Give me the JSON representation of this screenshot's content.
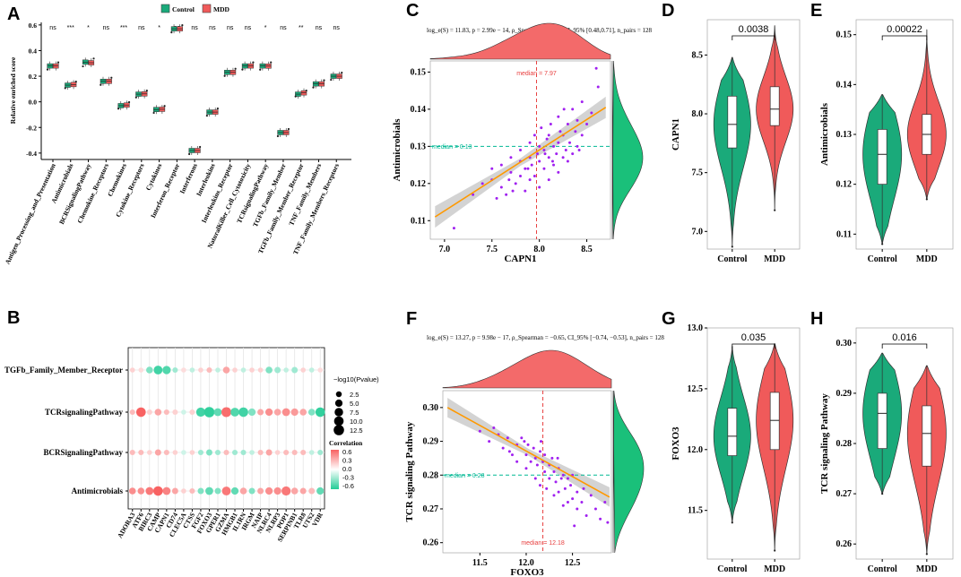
{
  "colors": {
    "control": "#1aaa7a",
    "mdd": "#f05a5a",
    "scatter": "#a020f0",
    "fit": "#ff9900",
    "medianH": "#00b894",
    "medianV": "#e84040"
  },
  "panels": {
    "A": "A",
    "B": "B",
    "C": "C",
    "D": "D",
    "E": "E",
    "F": "F",
    "G": "G",
    "H": "H"
  },
  "chart_data": [
    {
      "panel": "A",
      "type": "box",
      "legend": [
        "Control",
        "MDD"
      ],
      "ylabel": "Relative enriched score",
      "ylim": [
        -0.45,
        0.62
      ],
      "yticks": [
        "0.6",
        "0.4",
        "0.2",
        "0.0",
        "-0.2",
        "-0.4"
      ],
      "categories": [
        "Antigen_Processing_and_Presentation",
        "Antimicrobials",
        "BCRSignalingPathway",
        "Chemokine_Receptors",
        "Chemokines",
        "Cytokine_Receptors",
        "Cytokines",
        "Interferon_Receptor",
        "Interferons",
        "Interleukins",
        "Interleukins_Receptor",
        "NaturalKiller_Cell_Cytotoxicity",
        "TCRsignalingPathway",
        "TGFb_Family_Member",
        "TGFb_Family_Member_Receptor",
        "TNF_Family_Members",
        "TNF_Family_Members_Receptors"
      ],
      "significance": [
        "ns",
        "***",
        "*",
        "ns",
        "***",
        "ns",
        "*",
        "ns",
        "ns",
        "ns",
        "ns",
        "ns",
        "*",
        "ns",
        "**",
        "ns",
        "ns"
      ],
      "control": [
        0.28,
        0.13,
        0.31,
        0.16,
        -0.03,
        0.06,
        -0.06,
        0.57,
        -0.38,
        -0.08,
        0.23,
        0.28,
        0.28,
        -0.24,
        0.06,
        0.14,
        0.2
      ],
      "mdd": [
        0.28,
        0.135,
        0.305,
        0.16,
        -0.025,
        0.062,
        -0.058,
        0.57,
        -0.38,
        -0.08,
        0.23,
        0.28,
        0.279,
        -0.24,
        0.07,
        0.14,
        0.2
      ]
    },
    {
      "panel": "B",
      "type": "dotplot",
      "pathways": [
        "TGFb_Family_Member_Receptor",
        "TCRsignalingPathway",
        "BCRSignalingPathway",
        "Antimicrobials"
      ],
      "genes": [
        "ADORA3",
        "ATF6",
        "BIRC3",
        "CAMP",
        "CAPN1",
        "CD74",
        "CLEC5A",
        "CTSS",
        "FGF2",
        "FOXO3",
        "GPER1",
        "GZMA",
        "HMGB1",
        "IL1RN",
        "IRGM",
        "NAIP",
        "NLRC4",
        "NLRP3",
        "POP1",
        "SERPINB1",
        "TLR8",
        "UTS2",
        "VDR"
      ],
      "size_legend_title": "−log10(Pvalue)",
      "size_legend": [
        "2.5",
        "5.0",
        "7.5",
        "10.0",
        "12.5"
      ],
      "color_legend_title": "Correlation",
      "color_legend": [
        "0.6",
        "0.3",
        "0.0",
        "-0.3",
        "-0.6"
      ],
      "correlation": [
        [
          0.1,
          0.05,
          -0.3,
          -0.5,
          -0.45,
          -0.2,
          0.05,
          -0.1,
          0.1,
          0.2,
          -0.1,
          0.3,
          0.1,
          -0.1,
          0.1,
          0.1,
          -0.3,
          -0.2,
          -0.1,
          -0.2,
          0.1,
          -0.1,
          0.05
        ],
        [
          0.2,
          0.6,
          0.1,
          0.3,
          0.2,
          0.1,
          -0.05,
          0.1,
          -0.5,
          -0.55,
          -0.4,
          0.55,
          -0.45,
          -0.5,
          -0.3,
          0.3,
          0.4,
          0.3,
          0.4,
          0.35,
          0.3,
          -0.3,
          -0.55
        ],
        [
          0.2,
          0.2,
          0.1,
          0.3,
          0.2,
          0.1,
          -0.05,
          0.1,
          -0.2,
          -0.3,
          -0.2,
          0.2,
          -0.2,
          -0.2,
          -0.1,
          0.2,
          0.3,
          0.1,
          0.2,
          0.2,
          0.2,
          -0.1,
          -0.2
        ],
        [
          0.4,
          0.4,
          0.5,
          0.6,
          0.45,
          0.3,
          0.1,
          0.2,
          -0.3,
          -0.4,
          -0.3,
          0.5,
          -0.4,
          0.3,
          -0.3,
          0.3,
          0.4,
          0.4,
          0.5,
          0.3,
          0.3,
          0.2,
          -0.4
        ]
      ],
      "neglog10p": [
        [
          1.5,
          1.5,
          4,
          8,
          7,
          2,
          1.5,
          1.5,
          1.5,
          2,
          1.5,
          4,
          1.5,
          1.5,
          1.5,
          1.5,
          4,
          3,
          1.5,
          3,
          1.5,
          1.5,
          1.5
        ],
        [
          2,
          10,
          2,
          4,
          2,
          2,
          1.5,
          2,
          9,
          12.5,
          6,
          11,
          8,
          10,
          5,
          3,
          5,
          4,
          6,
          5,
          4,
          4,
          10
        ],
        [
          2,
          2,
          1.5,
          3,
          2,
          1.5,
          1.5,
          1.5,
          2,
          3,
          2,
          2,
          2,
          2,
          1.5,
          2,
          3,
          1.5,
          2,
          2,
          2,
          1.5,
          2
        ],
        [
          4,
          4,
          6,
          10,
          6,
          3,
          1.5,
          2,
          3,
          6,
          3,
          8,
          5,
          4,
          3,
          3,
          5,
          5,
          9,
          4,
          3,
          3,
          5
        ]
      ]
    },
    {
      "panel": "C",
      "type": "scatter",
      "stats_text": "log_e(S) = 11.83, p = 2.99e − 14, ρ_Spearman = 0.61, CI_95% [0.48,0.71], n_pairs = 128",
      "xlabel": "CAPN1",
      "ylabel": "Antimicrobials",
      "xlim": [
        6.85,
        8.75
      ],
      "ylim": [
        0.105,
        0.153
      ],
      "xticks": [
        "7.0",
        "7.5",
        "8.0",
        "8.5"
      ],
      "yticks": [
        "0.11",
        "0.12",
        "0.13",
        "0.14",
        "0.15"
      ],
      "median_x_label": "median = 7.97",
      "median_y_label": "median = 0.13",
      "median_x": 7.97,
      "median_y": 0.13,
      "fit": {
        "x": [
          6.9,
          8.7
        ],
        "y": [
          0.111,
          0.1405
        ]
      },
      "x": [
        7.1,
        7.3,
        7.4,
        7.5,
        7.5,
        7.6,
        7.6,
        7.65,
        7.7,
        7.7,
        7.75,
        7.8,
        7.8,
        7.8,
        7.85,
        7.85,
        7.9,
        7.9,
        7.9,
        7.92,
        7.95,
        7.95,
        7.98,
        8.0,
        8.0,
        8.0,
        8.02,
        8.05,
        8.05,
        8.08,
        8.1,
        8.1,
        8.1,
        8.12,
        8.15,
        8.15,
        8.18,
        8.2,
        8.2,
        8.2,
        8.22,
        8.25,
        8.25,
        8.28,
        8.3,
        8.3,
        8.32,
        8.35,
        8.35,
        8.38,
        8.4,
        8.4,
        8.45,
        8.45,
        8.5,
        8.55,
        8.6,
        8.62,
        7.55,
        7.68,
        7.72,
        7.88,
        8.06,
        8.14,
        8.26,
        8.42
      ],
      "y": [
        0.108,
        0.117,
        0.12,
        0.121,
        0.124,
        0.119,
        0.125,
        0.117,
        0.123,
        0.127,
        0.12,
        0.122,
        0.126,
        0.129,
        0.118,
        0.124,
        0.121,
        0.127,
        0.131,
        0.125,
        0.122,
        0.133,
        0.128,
        0.119,
        0.126,
        0.13,
        0.135,
        0.124,
        0.129,
        0.132,
        0.121,
        0.127,
        0.133,
        0.136,
        0.125,
        0.13,
        0.128,
        0.123,
        0.131,
        0.138,
        0.134,
        0.127,
        0.133,
        0.129,
        0.126,
        0.136,
        0.131,
        0.128,
        0.14,
        0.134,
        0.13,
        0.137,
        0.133,
        0.142,
        0.136,
        0.139,
        0.151,
        0.146,
        0.116,
        0.121,
        0.118,
        0.124,
        0.128,
        0.126,
        0.14,
        0.129
      ]
    },
    {
      "panel": "F",
      "type": "scatter",
      "stats_text": "log_e(S) = 13.27, p = 9.98e − 17, ρ_Spearman = −0.65, CI_95% [−0.74, −0.53], n_pairs = 128",
      "xlabel": "FOXO3",
      "ylabel": "TCR signaling Pathway",
      "xlim": [
        11.1,
        12.92
      ],
      "ylim": [
        0.257,
        0.305
      ],
      "xticks": [
        "11.5",
        "12.0",
        "12.5"
      ],
      "yticks": [
        "0.26",
        "0.27",
        "0.28",
        "0.29",
        "0.30"
      ],
      "median_x_label": "median = 12.18",
      "median_y_label": "median = 0.28",
      "median_x": 12.18,
      "median_y": 0.28,
      "fit": {
        "x": [
          11.15,
          12.9
        ],
        "y": [
          0.3,
          0.2735
        ]
      },
      "x": [
        11.5,
        11.6,
        11.7,
        11.75,
        11.8,
        11.85,
        11.9,
        11.9,
        11.95,
        12.0,
        12.0,
        12.02,
        12.05,
        12.08,
        12.1,
        12.1,
        12.12,
        12.15,
        12.15,
        12.18,
        12.2,
        12.2,
        12.22,
        12.25,
        12.25,
        12.28,
        12.3,
        12.3,
        12.32,
        12.35,
        12.35,
        12.38,
        12.4,
        12.4,
        12.42,
        12.45,
        12.45,
        12.48,
        12.5,
        12.5,
        12.55,
        12.55,
        12.6,
        12.62,
        12.65,
        12.7,
        12.75,
        12.8,
        12.85,
        12.88,
        11.65,
        11.82,
        11.98,
        12.16,
        12.34,
        12.52
      ],
      "y": [
        0.293,
        0.29,
        0.292,
        0.288,
        0.291,
        0.286,
        0.289,
        0.284,
        0.291,
        0.286,
        0.282,
        0.289,
        0.284,
        0.288,
        0.279,
        0.285,
        0.283,
        0.287,
        0.277,
        0.284,
        0.281,
        0.286,
        0.276,
        0.283,
        0.279,
        0.285,
        0.274,
        0.281,
        0.278,
        0.282,
        0.275,
        0.279,
        0.271,
        0.28,
        0.276,
        0.279,
        0.272,
        0.277,
        0.273,
        0.28,
        0.275,
        0.27,
        0.272,
        0.276,
        0.268,
        0.274,
        0.27,
        0.267,
        0.272,
        0.266,
        0.294,
        0.287,
        0.29,
        0.29,
        0.285,
        0.265
      ]
    },
    {
      "panel": "D",
      "type": "violin",
      "ylabel": "CAPN1",
      "categories": [
        "Control",
        "MDD"
      ],
      "pvalue": "0.0038",
      "ylim": [
        6.85,
        8.8
      ],
      "yticks": [
        "7.0",
        "7.5",
        "8.0",
        "8.5"
      ],
      "control": {
        "min": 6.87,
        "q1": 7.71,
        "median": 7.91,
        "q3": 8.15,
        "max": 8.48
      },
      "mdd": {
        "min": 7.18,
        "q1": 7.9,
        "median": 8.04,
        "q3": 8.23,
        "max": 8.75
      }
    },
    {
      "panel": "E",
      "type": "violin",
      "ylabel": "Antimicrobials",
      "categories": [
        "Control",
        "MDD"
      ],
      "pvalue": "0.00022",
      "ylim": [
        0.107,
        0.153
      ],
      "yticks": [
        "0.11",
        "0.12",
        "0.13",
        "0.14",
        "0.15"
      ],
      "control": {
        "min": 0.108,
        "q1": 0.12,
        "median": 0.126,
        "q3": 0.131,
        "max": 0.138
      },
      "mdd": {
        "min": 0.117,
        "q1": 0.126,
        "median": 0.13,
        "q3": 0.134,
        "max": 0.151
      }
    },
    {
      "panel": "G",
      "type": "violin",
      "ylabel": "FOXO3",
      "categories": [
        "Control",
        "MDD"
      ],
      "pvalue": "0.035",
      "ylim": [
        11.1,
        13.0
      ],
      "yticks": [
        "11.5",
        "12.0",
        "12.5",
        "13.0"
      ],
      "control": {
        "min": 11.4,
        "q1": 11.95,
        "median": 12.11,
        "q3": 12.34,
        "max": 12.85
      },
      "mdd": {
        "min": 11.17,
        "q1": 12.0,
        "median": 12.24,
        "q3": 12.47,
        "max": 12.87
      }
    },
    {
      "panel": "H",
      "type": "violin",
      "ylabel": "TCR signaling Pathway",
      "categories": [
        "Control",
        "MDD"
      ],
      "pvalue": "0.016",
      "ylim": [
        0.257,
        0.303
      ],
      "yticks": [
        "0.26",
        "0.27",
        "0.28",
        "0.29",
        "0.30"
      ],
      "control": {
        "min": 0.27,
        "q1": 0.279,
        "median": 0.286,
        "q3": 0.29,
        "max": 0.298
      },
      "mdd": {
        "min": 0.258,
        "q1": 0.2755,
        "median": 0.282,
        "q3": 0.2875,
        "max": 0.2955
      }
    }
  ]
}
